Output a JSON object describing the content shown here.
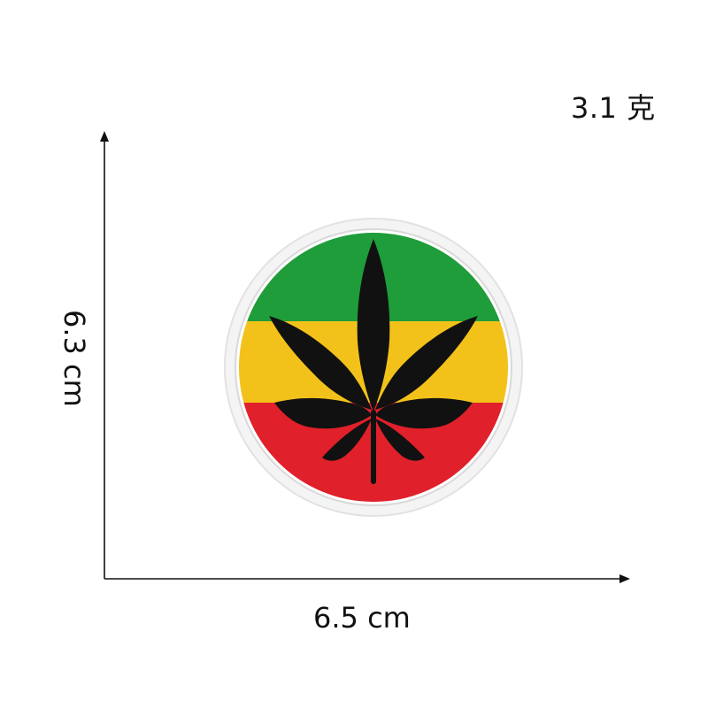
{
  "product": {
    "weight_label": "3.1 克",
    "width_label": "6.5 cm",
    "height_label": "6.3 cm",
    "patch": {
      "stripe_colors": [
        "#1f9d3a",
        "#f3c21a",
        "#e0202a"
      ],
      "border_color": "#f4f4f4",
      "leaf_color": "#111111",
      "leaf_icon": "cannabis-leaf-icon"
    }
  }
}
